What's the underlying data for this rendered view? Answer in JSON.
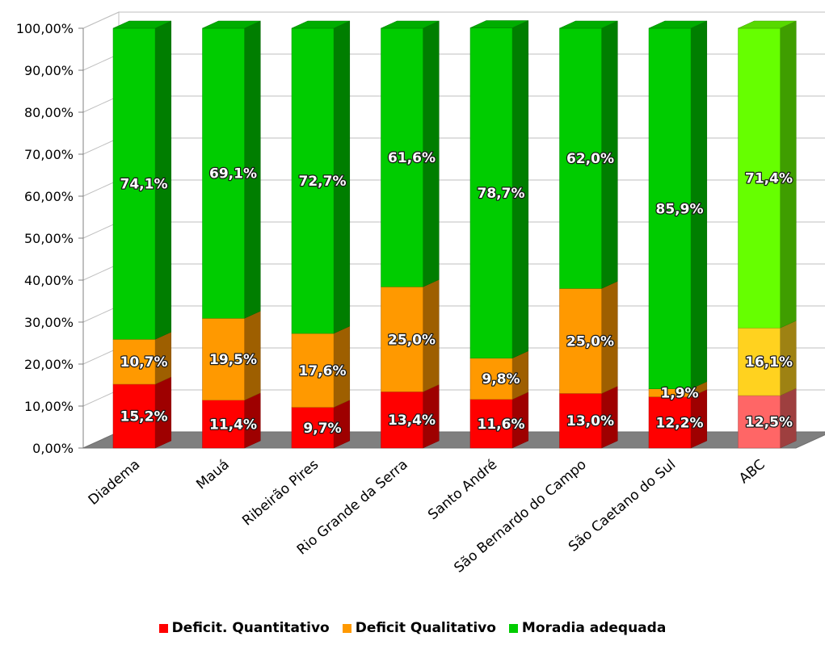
{
  "chart_data": {
    "type": "bar",
    "stacked": true,
    "three_d": true,
    "categories": [
      "Diadema",
      "Mauá",
      "Ribeirão Pires",
      "Rio Grande da Serra",
      "Santo André",
      "São Bernardo do Campo",
      "São Caetano do Sul",
      "ABC"
    ],
    "series": [
      {
        "name": "Deficit. Quantitativo",
        "color": "#ff0000",
        "values": [
          15.2,
          11.4,
          9.7,
          13.4,
          11.6,
          13.0,
          12.2,
          12.5
        ],
        "labels": [
          "15,2%",
          "11,4%",
          "9,7%",
          "13,4%",
          "11,6%",
          "13,0%",
          "12,2%",
          "12,5%"
        ],
        "last_point_color": "#ff6666"
      },
      {
        "name": "Deficit Qualitativo",
        "color": "#ff9900",
        "values": [
          10.7,
          19.5,
          17.6,
          25.0,
          9.8,
          25.0,
          1.9,
          16.1
        ],
        "labels": [
          "10,7%",
          "19,5%",
          "17,6%",
          "25,0%",
          "9,8%",
          "25,0%",
          "1,9%",
          "16,1%"
        ],
        "last_point_color": "#ffd21f"
      },
      {
        "name": "Moradia adequada",
        "color": "#00cc00",
        "values": [
          74.1,
          69.1,
          72.7,
          61.6,
          78.7,
          62.0,
          85.9,
          71.4
        ],
        "labels": [
          "74,1%",
          "69,1%",
          "72,7%",
          "61,6%",
          "78,7%",
          "62,0%",
          "85,9%",
          "71,4%"
        ],
        "last_point_color": "#66ff00"
      }
    ],
    "y_ticks": [
      "0,00%",
      "10,00%",
      "20,00%",
      "30,00%",
      "40,00%",
      "50,00%",
      "60,00%",
      "70,00%",
      "80,00%",
      "90,00%",
      "100,00%"
    ],
    "ylim": [
      0,
      100
    ],
    "grid": true,
    "legend_position": "bottom",
    "floor_color": "#7f7f7f"
  }
}
